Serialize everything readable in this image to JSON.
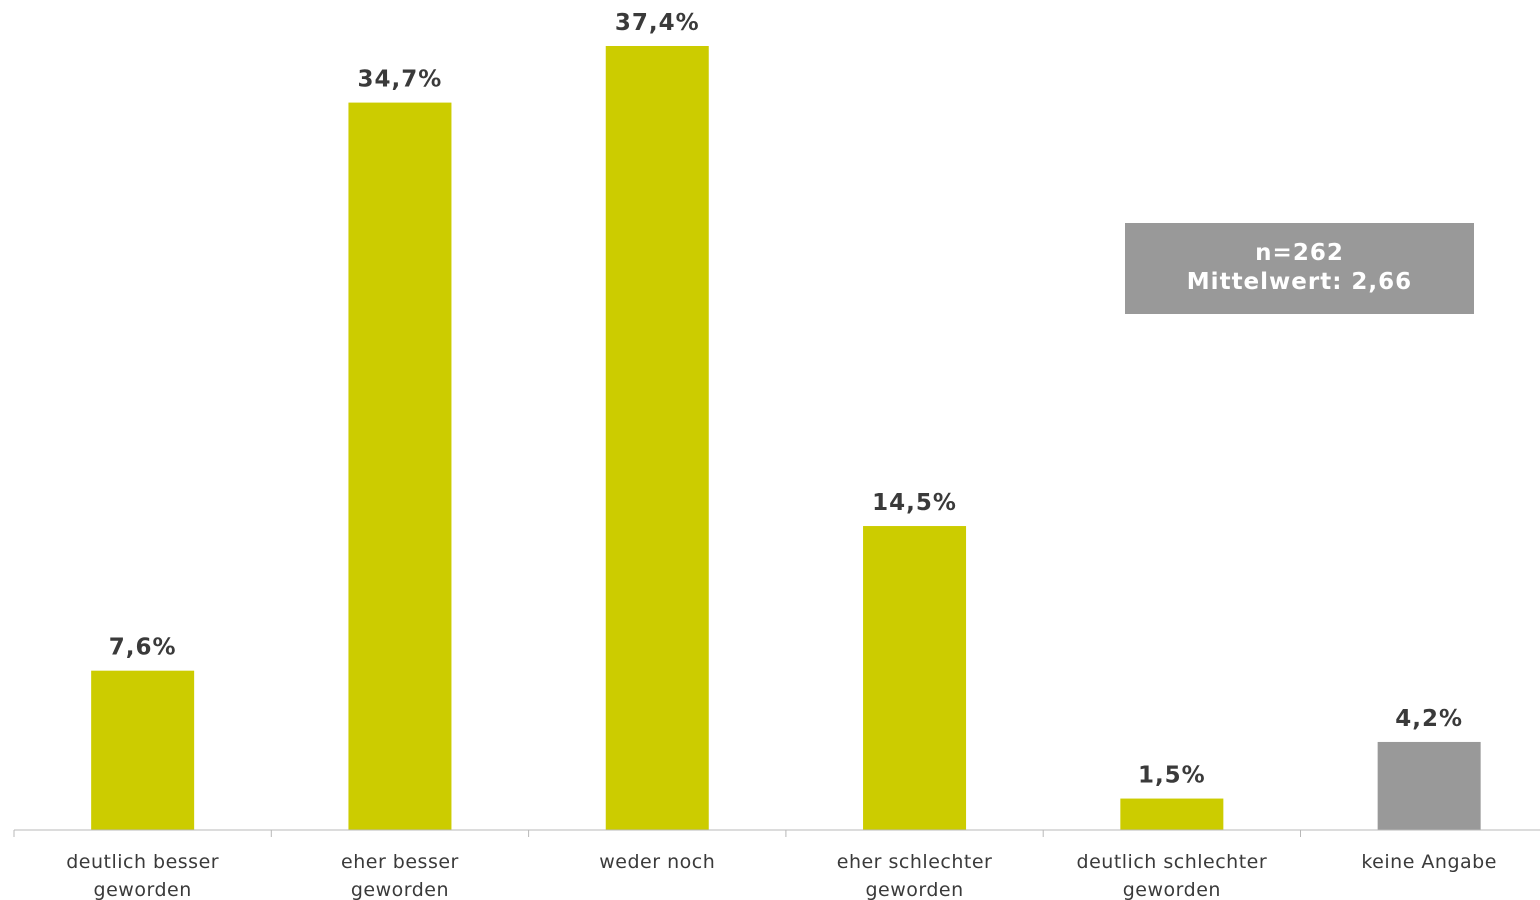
{
  "chart_data": {
    "type": "bar",
    "categories": [
      [
        "deutlich besser",
        "geworden"
      ],
      [
        "eher besser",
        "geworden"
      ],
      [
        "weder noch"
      ],
      [
        "eher schlechter",
        "geworden"
      ],
      [
        "deutlich schlechter",
        "geworden"
      ],
      [
        "keine Angabe"
      ]
    ],
    "values": [
      7.6,
      34.7,
      37.4,
      14.5,
      1.5,
      4.2
    ],
    "value_labels": [
      "7,6%",
      "34,7%",
      "37,4%",
      "14,5%",
      "1,5%",
      "4,2%"
    ],
    "bar_colors": [
      "#cccc00",
      "#cccc00",
      "#cccc00",
      "#cccc00",
      "#cccc00",
      "#999999"
    ],
    "ylim": [
      0,
      40
    ],
    "grid": false,
    "legend": "none"
  },
  "info_box": {
    "line1": "n=262",
    "line2": "Mittelwert: 2,66",
    "color": "#999999"
  },
  "axis_color": "#b8b8b8"
}
